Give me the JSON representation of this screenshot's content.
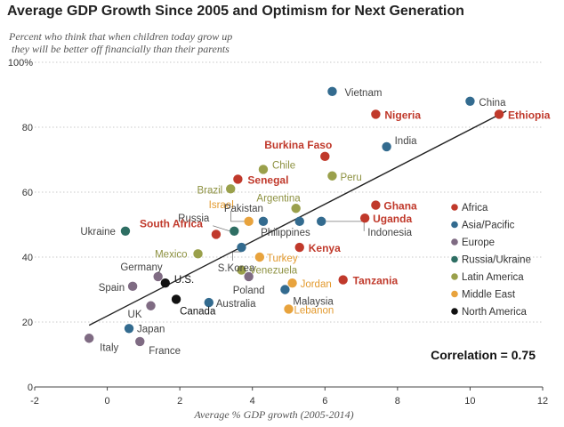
{
  "title": "Average GDP Growth Since 2005 and Optimism for Next Generation",
  "subtitle_line1": "Percent who think that when children today grow up",
  "subtitle_line2": "they will be better off financially than their parents",
  "colors": {
    "Africa": "#c0392b",
    "Asia/Pacific": "#336b8f",
    "Europe": "#7f6b83",
    "Russia/Ukraine": "#2e6e63",
    "Latin America": "#9aa04b",
    "Middle East": "#e8a33d",
    "North America": "#111111",
    "axis": "#333333",
    "trend": "#222222"
  },
  "chart_data": {
    "type": "scatter",
    "title": "Average GDP Growth Since 2005 and Optimism for Next Generation",
    "xlabel": "Average % GDP growth (2005-2014)",
    "ylabel": "Percent who think that when children today grow up they will be better off financially than their parents",
    "xlim": [
      -2,
      12
    ],
    "ylim": [
      0,
      100
    ],
    "x_ticks": [
      -2,
      0,
      2,
      4,
      6,
      8,
      10,
      12
    ],
    "y_ticks": [
      0,
      20,
      40,
      60,
      80,
      100
    ],
    "y_tick_labels": [
      "0",
      "20",
      "40",
      "60",
      "80",
      "100%"
    ],
    "correlation_label": "Correlation = 0.75",
    "trend_line": {
      "x": [
        -0.5,
        11
      ],
      "y": [
        19,
        85
      ]
    },
    "legend": [
      "Africa",
      "Asia/Pacific",
      "Europe",
      "Russia/Ukraine",
      "Latin America",
      "Middle East",
      "North America"
    ],
    "legend_position": "right",
    "points": [
      {
        "name": "Vietnam",
        "region": "Asia/Pacific",
        "x": 6.2,
        "y": 91
      },
      {
        "name": "China",
        "region": "Asia/Pacific",
        "x": 10.0,
        "y": 88
      },
      {
        "name": "Nigeria",
        "region": "Africa",
        "x": 7.4,
        "y": 84
      },
      {
        "name": "Ethiopia",
        "region": "Africa",
        "x": 10.8,
        "y": 84
      },
      {
        "name": "India",
        "region": "Asia/Pacific",
        "x": 7.7,
        "y": 74
      },
      {
        "name": "Burkina Faso",
        "region": "Africa",
        "x": 6.0,
        "y": 71
      },
      {
        "name": "Chile",
        "region": "Latin America",
        "x": 4.3,
        "y": 67
      },
      {
        "name": "Peru",
        "region": "Latin America",
        "x": 6.2,
        "y": 65
      },
      {
        "name": "Senegal",
        "region": "Africa",
        "x": 3.6,
        "y": 64
      },
      {
        "name": "Brazil",
        "region": "Latin America",
        "x": 3.4,
        "y": 61
      },
      {
        "name": "Argentina",
        "region": "Latin America",
        "x": 5.2,
        "y": 55
      },
      {
        "name": "Ghana",
        "region": "Africa",
        "x": 7.4,
        "y": 56
      },
      {
        "name": "Israel",
        "region": "Middle East",
        "x": 3.9,
        "y": 51
      },
      {
        "name": "Pakistan",
        "region": "Asia/Pacific",
        "x": 4.3,
        "y": 51
      },
      {
        "name": "Uganda",
        "region": "Africa",
        "x": 7.1,
        "y": 52
      },
      {
        "name": "Philippines",
        "region": "Asia/Pacific",
        "x": 5.3,
        "y": 51
      },
      {
        "name": "Indonesia",
        "region": "Asia/Pacific",
        "x": 5.9,
        "y": 51
      },
      {
        "name": "Ukraine",
        "region": "Russia/Ukraine",
        "x": 0.5,
        "y": 48
      },
      {
        "name": "Russia",
        "region": "Russia/Ukraine",
        "x": 3.5,
        "y": 48
      },
      {
        "name": "South Africa",
        "region": "Africa",
        "x": 3.0,
        "y": 47
      },
      {
        "name": "Kenya",
        "region": "Africa",
        "x": 5.3,
        "y": 43
      },
      {
        "name": "S.Korea",
        "region": "Asia/Pacific",
        "x": 3.7,
        "y": 43
      },
      {
        "name": "Mexico",
        "region": "Latin America",
        "x": 2.5,
        "y": 41
      },
      {
        "name": "Turkey",
        "region": "Middle East",
        "x": 4.2,
        "y": 40
      },
      {
        "name": "Germany",
        "region": "Europe",
        "x": 1.4,
        "y": 34
      },
      {
        "name": "Venezuela",
        "region": "Latin America",
        "x": 3.7,
        "y": 36
      },
      {
        "name": "Poland",
        "region": "Europe",
        "x": 3.9,
        "y": 34
      },
      {
        "name": "Tanzania",
        "region": "Africa",
        "x": 6.5,
        "y": 33
      },
      {
        "name": "Jordan",
        "region": "Middle East",
        "x": 5.1,
        "y": 32
      },
      {
        "name": "Spain",
        "region": "Europe",
        "x": 0.7,
        "y": 31
      },
      {
        "name": "U.S.",
        "region": "North America",
        "x": 1.6,
        "y": 32
      },
      {
        "name": "Malaysia",
        "region": "Asia/Pacific",
        "x": 4.9,
        "y": 30
      },
      {
        "name": "Canada",
        "region": "North America",
        "x": 1.9,
        "y": 27
      },
      {
        "name": "Australia",
        "region": "Asia/Pacific",
        "x": 2.8,
        "y": 26
      },
      {
        "name": "UK",
        "region": "Europe",
        "x": 1.2,
        "y": 25
      },
      {
        "name": "Lebanon",
        "region": "Middle East",
        "x": 5.0,
        "y": 24
      },
      {
        "name": "Japan",
        "region": "Asia/Pacific",
        "x": 0.6,
        "y": 18
      },
      {
        "name": "Italy",
        "region": "Europe",
        "x": -0.5,
        "y": 15
      },
      {
        "name": "France",
        "region": "Europe",
        "x": 0.9,
        "y": 14
      }
    ]
  }
}
